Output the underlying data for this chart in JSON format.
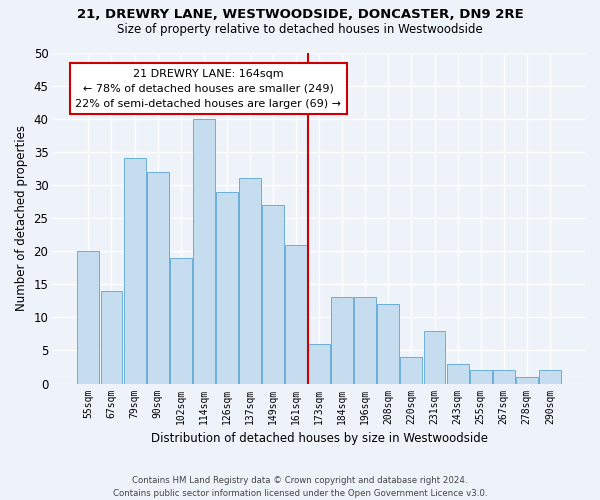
{
  "title1": "21, DREWRY LANE, WESTWOODSIDE, DONCASTER, DN9 2RE",
  "title2": "Size of property relative to detached houses in Westwoodside",
  "xlabel": "Distribution of detached houses by size in Westwoodside",
  "ylabel": "Number of detached properties",
  "categories": [
    "55sqm",
    "67sqm",
    "79sqm",
    "90sqm",
    "102sqm",
    "114sqm",
    "126sqm",
    "137sqm",
    "149sqm",
    "161sqm",
    "173sqm",
    "184sqm",
    "196sqm",
    "208sqm",
    "220sqm",
    "231sqm",
    "243sqm",
    "255sqm",
    "267sqm",
    "278sqm",
    "290sqm"
  ],
  "values": [
    20,
    14,
    34,
    32,
    19,
    40,
    29,
    31,
    27,
    21,
    6,
    13,
    13,
    12,
    4,
    8,
    3,
    2,
    2,
    1,
    2
  ],
  "bar_color": "#c5ddef",
  "bar_edge_color": "#6aaed6",
  "vline_x_index": 9.5,
  "vline_color": "#cc0000",
  "annotation_text": "21 DREWRY LANE: 164sqm\n← 78% of detached houses are smaller (249)\n22% of semi-detached houses are larger (69) →",
  "annotation_box_color": "#ffffff",
  "annotation_box_edge": "#cc0000",
  "ylim": [
    0,
    50
  ],
  "yticks": [
    0,
    5,
    10,
    15,
    20,
    25,
    30,
    35,
    40,
    45,
    50
  ],
  "footnote": "Contains HM Land Registry data © Crown copyright and database right 2024.\nContains public sector information licensed under the Open Government Licence v3.0.",
  "bg_color": "#eef2f9",
  "grid_color": "#ffffff"
}
